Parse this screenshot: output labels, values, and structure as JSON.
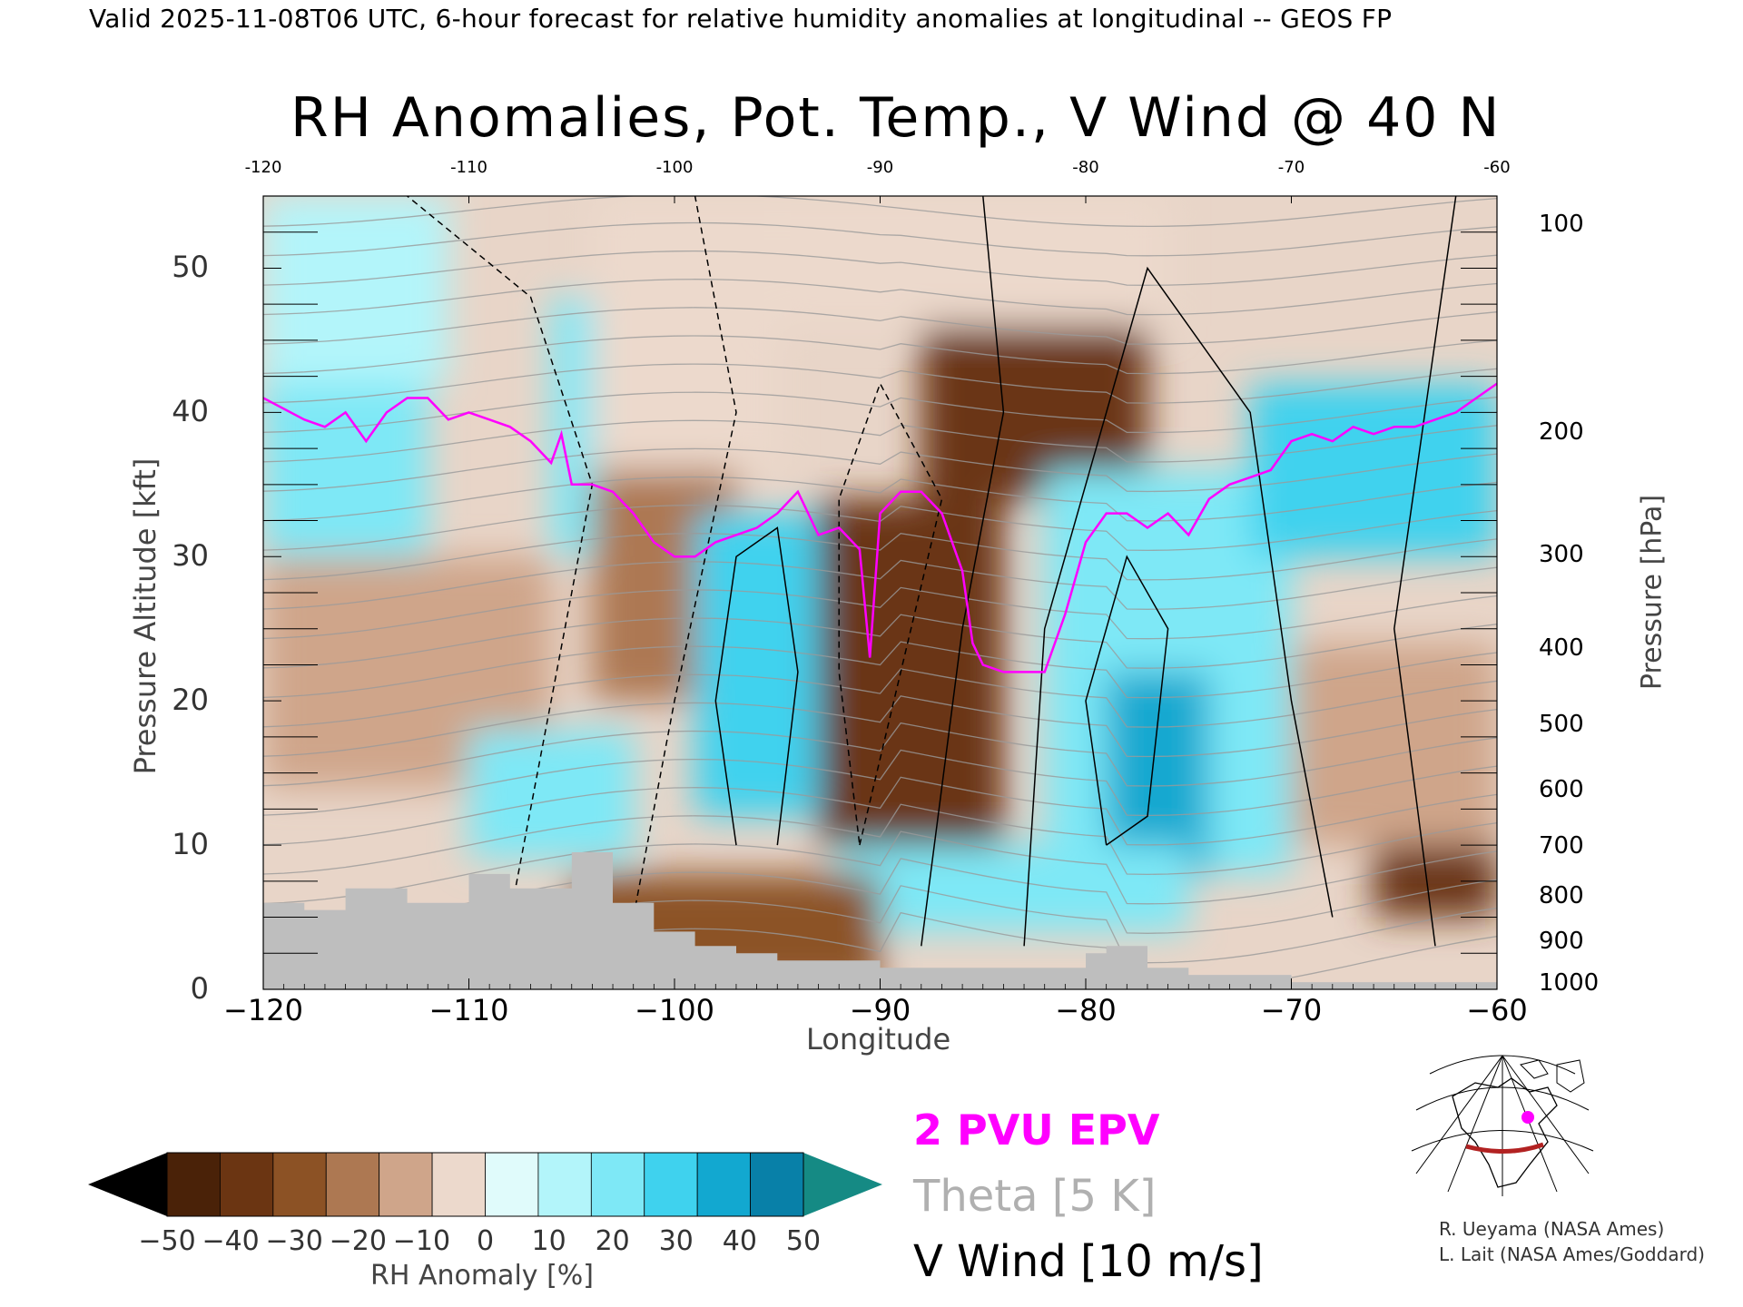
{
  "header": {
    "valid_line": "Valid 2025-11-08T06 UTC, 6-hour forecast for relative humidity anomalies at longitudinal -- GEOS FP",
    "title": "RH Anomalies, Pot. Temp., V Wind @ 40 N"
  },
  "chart_data": {
    "type": "heatmap",
    "title": "RH Anomalies, Pot. Temp., V Wind @ 40 N",
    "xlabel": "Longitude",
    "ylabel_left": "Pressure Altitude [kft]",
    "ylabel_right": "Pressure [hPa]",
    "xlim": [
      -120,
      -60
    ],
    "ylim_kft": [
      0,
      55
    ],
    "x_ticks": [
      -120,
      -110,
      -100,
      -90,
      -80,
      -70,
      -60
    ],
    "x_tick_labels": [
      "−120",
      "−110",
      "−100",
      "−90",
      "−80",
      "−70",
      "−60"
    ],
    "top_ticks": [
      -120,
      -110,
      -100,
      -90,
      -80,
      -70,
      -60
    ],
    "top_tick_labels": [
      "-120",
      "-110",
      "-100",
      "-90",
      "-80",
      "-70",
      "-60"
    ],
    "left_ticks": [
      0,
      10,
      20,
      30,
      40,
      50
    ],
    "right_ticks": [
      {
        "label": "100",
        "kft": 53
      },
      {
        "label": "200",
        "kft": 38.6
      },
      {
        "label": "300",
        "kft": 30.1
      },
      {
        "label": "400",
        "kft": 23.6
      },
      {
        "label": "500",
        "kft": 18.3
      },
      {
        "label": "600",
        "kft": 13.8
      },
      {
        "label": "700",
        "kft": 9.9
      },
      {
        "label": "800",
        "kft": 6.4
      },
      {
        "label": "900",
        "kft": 3.3
      },
      {
        "label": "1000",
        "kft": 0.4
      }
    ],
    "colorbar": {
      "label": "RH Anomaly [%]",
      "ticks": [
        "−50",
        "−40",
        "−30",
        "−20",
        "−10",
        "0",
        "10",
        "20",
        "30",
        "40",
        "50"
      ],
      "colors": [
        "#000000",
        "#4a2208",
        "#6b3512",
        "#8c5225",
        "#ad7852",
        "#cfa58a",
        "#ecd9cc",
        "#e0fbfb",
        "#b3f5fa",
        "#7ee8f6",
        "#3fd2ee",
        "#12a8d0",
        "#0880a8",
        "#158a84"
      ]
    },
    "overlay_legend": [
      {
        "label": "2 PVU EPV",
        "color": "#ff00ff"
      },
      {
        "label": "Theta [5 K]",
        "color": "#b0b0b0"
      },
      {
        "label": "V Wind [10 m/s]",
        "color": "#000000"
      }
    ],
    "rh_anomaly_blocks": [
      {
        "x": [
          -120,
          -112
        ],
        "kft": [
          30,
          42
        ],
        "rh": 30
      },
      {
        "x": [
          -120,
          -111
        ],
        "kft": [
          42,
          55
        ],
        "rh": 20
      },
      {
        "x": [
          -120,
          -106
        ],
        "kft": [
          14,
          30
        ],
        "rh": -15
      },
      {
        "x": [
          -106,
          -104
        ],
        "kft": [
          30,
          48
        ],
        "rh": 25
      },
      {
        "x": [
          -104,
          -95
        ],
        "kft": [
          36,
          55
        ],
        "rh": -5
      },
      {
        "x": [
          -104,
          -97
        ],
        "kft": [
          20,
          36
        ],
        "rh": -25
      },
      {
        "x": [
          -99,
          -93
        ],
        "kft": [
          12,
          33
        ],
        "rh": 35
      },
      {
        "x": [
          -93,
          -84
        ],
        "kft": [
          10,
          34
        ],
        "rh": -45
      },
      {
        "x": [
          -88,
          -77
        ],
        "kft": [
          34,
          46
        ],
        "rh": -45
      },
      {
        "x": [
          -95,
          -76
        ],
        "kft": [
          46,
          55
        ],
        "rh": -5
      },
      {
        "x": [
          -82,
          -70
        ],
        "kft": [
          8,
          36
        ],
        "rh": 30
      },
      {
        "x": [
          -79,
          -74
        ],
        "kft": [
          8,
          22
        ],
        "rh": 50
      },
      {
        "x": [
          -72,
          -60
        ],
        "kft": [
          30,
          42
        ],
        "rh": 40
      },
      {
        "x": [
          -70,
          -60
        ],
        "kft": [
          10,
          24
        ],
        "rh": -15
      },
      {
        "x": [
          -66,
          -60
        ],
        "kft": [
          5,
          10
        ],
        "rh": -45
      },
      {
        "x": [
          -110,
          -102
        ],
        "kft": [
          9,
          18
        ],
        "rh": 30
      },
      {
        "x": [
          -92,
          -75
        ],
        "kft": [
          4,
          10
        ],
        "rh": 25
      },
      {
        "x": [
          -105,
          -90
        ],
        "kft": [
          0,
          8
        ],
        "rh": -30
      }
    ],
    "epv_2pvu": {
      "x": [
        -120,
        -118,
        -117,
        -116,
        -115,
        -114,
        -113,
        -112,
        -111,
        -110,
        -109,
        -108,
        -107,
        -106,
        -105.5,
        -105,
        -104,
        -103,
        -102,
        -101,
        -100,
        -99,
        -98,
        -97,
        -96,
        -95,
        -94,
        -93,
        -92,
        -91,
        -90.5,
        -90,
        -89,
        -88,
        -87,
        -86,
        -85.5,
        -85,
        -84,
        -83,
        -82,
        -81,
        -80,
        -79,
        -78,
        -77,
        -76,
        -75,
        -74,
        -73,
        -72,
        -71,
        -70,
        -69,
        -68,
        -67,
        -66,
        -65,
        -64,
        -63,
        -62,
        -61,
        -60
      ],
      "kft": [
        41,
        39.5,
        39,
        40,
        38,
        40,
        41,
        41,
        39.5,
        40,
        39.5,
        39,
        38,
        36.5,
        38.5,
        35,
        35,
        34.5,
        33,
        31,
        30,
        30,
        31,
        31.5,
        32,
        33,
        34.5,
        31.5,
        32,
        30.5,
        23,
        33,
        34.5,
        34.5,
        33,
        29,
        24,
        22.5,
        22,
        22,
        22,
        26,
        31,
        33,
        33,
        32,
        33,
        31.5,
        34,
        35,
        35.5,
        36,
        38,
        38.5,
        38,
        39,
        38.5,
        39,
        39,
        39.5,
        40,
        41,
        42
      ]
    },
    "ground_profile": {
      "x": [
        -120,
        -118,
        -116,
        -113,
        -110,
        -108,
        -105,
        -103,
        -101,
        -99,
        -97,
        -95,
        -90,
        -85,
        -80,
        -79,
        -77,
        -75,
        -72,
        -70,
        -60
      ],
      "kft": [
        6,
        5.5,
        7,
        6,
        8,
        7,
        9.5,
        6,
        4,
        3,
        2.5,
        2,
        1.5,
        1.5,
        2.5,
        3,
        1.5,
        1,
        1,
        0.5,
        0
      ]
    },
    "theta_contours_K": [
      280,
      290,
      300,
      310,
      320,
      330,
      340,
      350,
      360,
      370,
      380,
      390,
      400,
      410
    ]
  },
  "colorbar_label": "RH Anomaly [%]",
  "credits": {
    "line1": "R. Ueyama (NASA Ames)",
    "line2": "L. Lait (NASA Ames/Goddard)"
  },
  "inset_map": {
    "name": "locator-map",
    "section_line_color": "#b22222",
    "marker_color": "#ff00ff"
  }
}
